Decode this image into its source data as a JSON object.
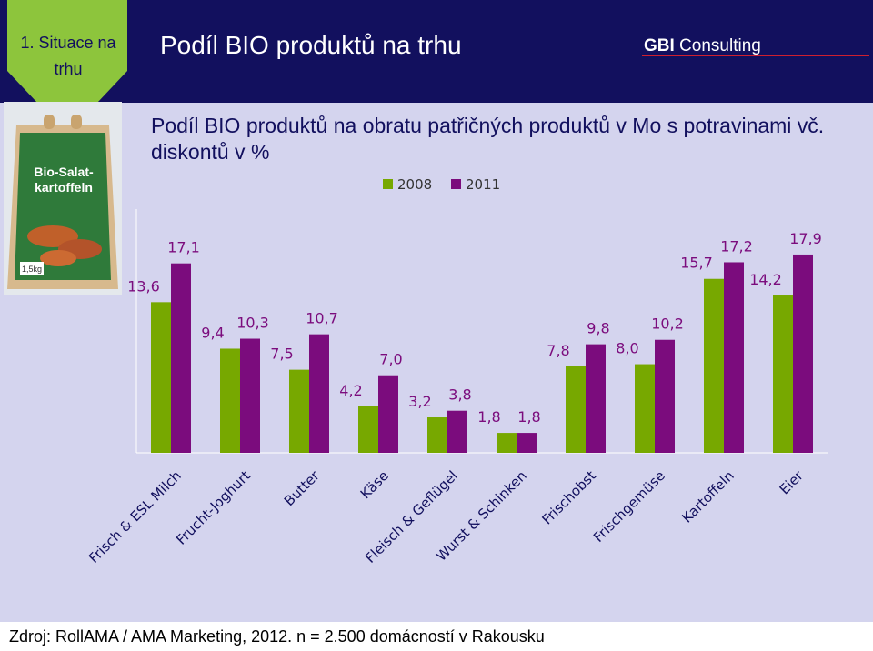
{
  "section": {
    "label": "1. Situace na trhu"
  },
  "header": {
    "title": "Podíl BIO produktů na trhu",
    "brand_bold": "GBI",
    "brand_rest": " Consulting"
  },
  "subtitle": "Podíl BIO produktů na obratu patřičných produktů v Mo s potravinami vč. diskontů v %",
  "product_image": {
    "line1": "Bio-Salat-",
    "line2": "kartoffeln",
    "weight": "1,5kg"
  },
  "source": "Zdroj: RollAMA / AMA Marketing, 2012. n = 2.500 domácností v Rakousku",
  "colors": {
    "green": "#77a800",
    "purple": "#7b0c7d",
    "background": "#d4d4ee",
    "header": "#12105e"
  },
  "chart_data": {
    "type": "bar",
    "categories": [
      "Frisch & ESL Milch",
      "Frucht-Joghurt",
      "Butter",
      "Käse",
      "Fleisch & Geflügel",
      "Wurst & Schinken",
      "Frischobst",
      "Frischgemüse",
      "Kartoffeln",
      "Eier"
    ],
    "series": [
      {
        "name": "2008",
        "values": [
          13.6,
          9.4,
          7.5,
          4.2,
          3.2,
          1.8,
          7.8,
          8.0,
          15.7,
          14.2
        ],
        "labels": [
          "13,6",
          "9,4",
          "7,5",
          "4,2",
          "3,2",
          "1,8",
          "7,8",
          "8,0",
          "15,7",
          "14,2"
        ],
        "color": "#77a800"
      },
      {
        "name": "2011",
        "values": [
          17.1,
          10.3,
          10.7,
          7.0,
          3.8,
          1.8,
          9.8,
          10.2,
          17.2,
          17.9
        ],
        "labels": [
          "17,1",
          "10,3",
          "10,7",
          "7,0",
          "3,8",
          "1,8",
          "9,8",
          "10,2",
          "17,2",
          "17,9"
        ],
        "color": "#7b0c7d"
      }
    ],
    "ylim": [
      0,
      22
    ],
    "legend": "top-center",
    "grid": false
  }
}
